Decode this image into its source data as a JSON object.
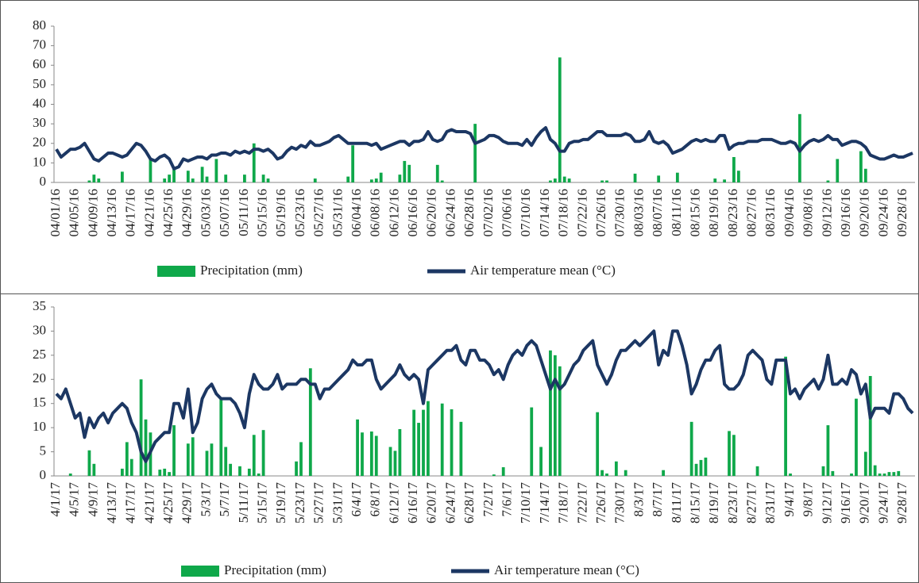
{
  "chart_data": [
    {
      "type": "bar-line",
      "legend": "bottom",
      "ylim": [
        0,
        80
      ],
      "yticks": [
        0,
        10,
        20,
        30,
        40,
        50,
        60,
        70,
        80
      ],
      "categories": [
        "04/01/16",
        null,
        null,
        null,
        "04/05/16",
        null,
        null,
        null,
        "04/09/16",
        null,
        null,
        null,
        "04/13/16",
        null,
        null,
        null,
        "04/17/16",
        null,
        null,
        null,
        "04/21/16",
        null,
        null,
        null,
        "04/25/16",
        null,
        null,
        null,
        "04/29/16",
        null,
        null,
        null,
        "05/03/16",
        null,
        null,
        null,
        "05/07/16",
        null,
        null,
        null,
        "05/11/16",
        null,
        null,
        null,
        "05/15/16",
        null,
        null,
        null,
        "05/19/16",
        null,
        null,
        null,
        "05/23/16",
        null,
        null,
        null,
        "05/27/16",
        null,
        null,
        null,
        "05/31/16",
        null,
        null,
        null,
        "06/04/16",
        null,
        null,
        null,
        "06/08/16",
        null,
        null,
        null,
        "06/12/16",
        null,
        null,
        null,
        "06/16/16",
        null,
        null,
        null,
        "06/20/16",
        null,
        null,
        null,
        "06/24/16",
        null,
        null,
        null,
        "06/28/16",
        null,
        null,
        null,
        "07/02/16",
        null,
        null,
        null,
        "07/06/16",
        null,
        null,
        null,
        "07/10/16",
        null,
        null,
        null,
        "07/14/16",
        null,
        null,
        null,
        "07/18/16",
        null,
        null,
        null,
        "07/22/16",
        null,
        null,
        null,
        "07/26/16",
        null,
        null,
        null,
        "07/30/16",
        null,
        null,
        null,
        "08/03/16",
        null,
        null,
        null,
        "08/07/16",
        null,
        null,
        null,
        "08/11/16",
        null,
        null,
        null,
        "08/15/16",
        null,
        null,
        null,
        "08/19/16",
        null,
        null,
        null,
        "08/23/16",
        null,
        null,
        null,
        "08/27/16",
        null,
        null,
        null,
        "08/31/16",
        null,
        null,
        null,
        "09/04/16",
        null,
        null,
        null,
        "09/08/16",
        null,
        null,
        null,
        "09/12/16",
        null,
        null,
        null,
        "09/16/16",
        null,
        null,
        null,
        "09/20/16",
        null,
        null,
        null,
        "09/24/16",
        null,
        null,
        null,
        "09/28/16",
        null,
        null
      ],
      "series": [
        {
          "name": "Precipitation (mm)",
          "type": "bar",
          "color": "#0fa84a",
          "values": [
            0,
            0,
            0,
            0,
            0,
            0,
            0,
            1,
            4,
            2,
            0,
            0,
            0,
            0,
            5.5,
            0,
            0,
            0,
            0,
            0,
            12,
            0,
            0,
            2,
            4,
            7,
            0,
            0,
            6,
            2,
            0,
            8,
            3,
            0,
            12,
            0,
            4,
            0,
            0,
            0,
            4,
            0,
            20,
            0,
            4,
            2,
            0,
            0,
            0,
            0,
            0,
            0,
            0,
            0,
            0,
            2,
            0,
            0,
            0,
            0,
            0,
            0,
            3,
            19,
            0,
            0,
            0,
            1.5,
            2,
            5,
            0,
            0,
            0,
            4,
            11,
            9,
            0,
            0,
            0,
            0,
            0,
            9,
            1,
            0,
            0,
            0,
            0,
            0,
            0,
            30,
            0,
            0,
            0,
            0,
            0,
            0,
            0,
            0,
            0,
            0,
            0,
            0,
            0,
            0,
            0,
            1,
            2,
            64,
            3,
            2,
            0,
            0,
            0,
            0,
            0,
            0,
            1,
            1,
            0,
            0,
            0,
            0,
            0,
            4.5,
            0,
            0,
            0,
            0,
            3.5,
            0,
            0,
            0,
            5,
            0,
            0,
            0,
            0,
            0,
            0,
            0,
            2,
            0,
            1.5,
            0,
            13,
            6,
            0,
            0,
            0,
            0,
            0,
            0,
            0,
            0,
            0,
            0,
            0,
            0,
            35,
            0,
            0,
            0,
            0,
            0,
            1,
            0,
            12,
            0,
            0,
            0,
            0,
            16,
            7,
            0,
            0,
            0,
            0,
            0,
            0,
            0,
            0,
            0,
            0
          ]
        },
        {
          "name": "Air temperature mean (°C)",
          "type": "line",
          "color": "#1c3763",
          "values": [
            17,
            13,
            15,
            17,
            17,
            18,
            20,
            16,
            12,
            11,
            13,
            15,
            15,
            14,
            13,
            14,
            17,
            20,
            19,
            16,
            12,
            11,
            13,
            14,
            12,
            7,
            8,
            12,
            11,
            12,
            13,
            13,
            12,
            14,
            14,
            15,
            15,
            14,
            16,
            15,
            16,
            15,
            17,
            17,
            16,
            17,
            15,
            12,
            13,
            16,
            18,
            17,
            19,
            18,
            21,
            19,
            19,
            20,
            21,
            23,
            24,
            22,
            20,
            20,
            20,
            20,
            20,
            19,
            20,
            17,
            18,
            19,
            20,
            21,
            21,
            19,
            21,
            21,
            22,
            26,
            22,
            21,
            22,
            26,
            27,
            26,
            26,
            26,
            25,
            20,
            21,
            22,
            24,
            24,
            23,
            21,
            20,
            20,
            20,
            19,
            22,
            19,
            23,
            26,
            28,
            22,
            20,
            16,
            16,
            20,
            21,
            21,
            22,
            22,
            24,
            26,
            26,
            24,
            24,
            24,
            24,
            25,
            24,
            21,
            21,
            22,
            26,
            21,
            20,
            21,
            19,
            15,
            16,
            17,
            19,
            21,
            22,
            21,
            22,
            21,
            21,
            24,
            24,
            17,
            19,
            20,
            20,
            21,
            21,
            21,
            22,
            22,
            22,
            21,
            20,
            20,
            21,
            20,
            16,
            19,
            21,
            22,
            21,
            22,
            24,
            22,
            22,
            19,
            20,
            21,
            21,
            20,
            18,
            14,
            13,
            12,
            12,
            13,
            14,
            13,
            13,
            14,
            15
          ]
        }
      ]
    },
    {
      "type": "bar-line",
      "legend": "bottom",
      "ylim": [
        0,
        35
      ],
      "yticks": [
        0,
        5,
        10,
        15,
        20,
        25,
        30,
        35
      ],
      "categories": [
        "4/1/17",
        null,
        null,
        null,
        "4/5/17",
        null,
        null,
        null,
        "4/9/17",
        null,
        null,
        null,
        "4/13/17",
        null,
        null,
        null,
        "4/17/17",
        null,
        null,
        null,
        "4/21/17",
        null,
        null,
        null,
        "4/25/17",
        null,
        null,
        null,
        "4/29/17",
        null,
        null,
        null,
        "5/3/17",
        null,
        null,
        null,
        "5/7/17",
        null,
        null,
        null,
        "5/11/17",
        null,
        null,
        null,
        "5/15/17",
        null,
        null,
        null,
        "5/19/17",
        null,
        null,
        null,
        "5/23/17",
        null,
        null,
        null,
        "5/27/17",
        null,
        null,
        null,
        "5/31/17",
        null,
        null,
        null,
        "6/4/17",
        null,
        null,
        null,
        "6/8/17",
        null,
        null,
        null,
        "6/12/17",
        null,
        null,
        null,
        "6/16/17",
        null,
        null,
        null,
        "6/20/17",
        null,
        null,
        null,
        "6/24/17",
        null,
        null,
        null,
        "6/28/17",
        null,
        null,
        null,
        "7/2/17",
        null,
        null,
        null,
        "7/6/17",
        null,
        null,
        null,
        "7/10/17",
        null,
        null,
        null,
        "7/14/17",
        null,
        null,
        null,
        "7/18/17",
        null,
        null,
        null,
        "7/22/17",
        null,
        null,
        null,
        "7/26/17",
        null,
        null,
        null,
        "7/30/17",
        null,
        null,
        null,
        "8/3/17",
        null,
        null,
        null,
        "8/7/17",
        null,
        null,
        null,
        "8/11/17",
        null,
        null,
        null,
        "8/15/17",
        null,
        null,
        null,
        "8/19/17",
        null,
        null,
        null,
        "8/23/17",
        null,
        null,
        null,
        "8/27/17",
        null,
        null,
        null,
        "8/31/17",
        null,
        null,
        null,
        "9/4/17",
        null,
        null,
        null,
        "9/8/17",
        null,
        null,
        null,
        "9/12/17",
        null,
        null,
        null,
        "9/16/17",
        null,
        null,
        null,
        "9/20/17",
        null,
        null,
        null,
        "9/24/17",
        null,
        null,
        null,
        "9/28/17",
        null,
        null
      ],
      "series": [
        {
          "name": "Precipitation (mm)",
          "type": "bar",
          "color": "#0fa84a",
          "values": [
            0,
            0,
            0,
            0.5,
            0,
            0,
            0,
            5.3,
            2.5,
            0,
            0,
            0,
            0,
            0,
            1.5,
            7,
            3.5,
            0,
            20,
            11.7,
            9,
            0,
            1.3,
            1.5,
            0.8,
            10.5,
            0,
            0,
            6.7,
            8,
            0,
            0,
            5.2,
            6.7,
            0,
            16,
            6,
            2.5,
            0,
            2,
            0,
            1.5,
            8.5,
            0.5,
            9.5,
            0,
            0,
            0,
            0,
            0,
            0,
            3,
            7,
            0,
            22.3,
            0,
            0,
            0,
            0,
            0,
            0,
            0,
            0,
            0,
            11.7,
            9,
            0,
            9.2,
            8.3,
            0,
            0,
            6,
            5.2,
            9.7,
            0,
            0,
            13.7,
            11,
            13.7,
            15.5,
            0,
            0,
            15,
            0,
            13.8,
            0,
            11.2,
            0,
            0,
            0,
            0,
            0,
            0,
            0.3,
            0,
            1.8,
            0,
            0,
            0,
            0,
            0,
            14.2,
            0,
            6,
            0,
            26,
            25,
            22.7,
            0,
            0,
            0,
            0,
            0,
            0,
            0,
            13.2,
            1.2,
            0.5,
            0,
            3,
            0,
            1.2,
            0,
            0,
            0,
            0,
            0,
            0,
            0,
            1.2,
            0,
            0,
            0,
            0,
            0,
            11.2,
            2.5,
            3.3,
            3.8,
            0,
            0,
            0,
            0,
            9.3,
            8.5,
            0,
            0,
            0,
            0,
            2,
            0,
            0,
            0,
            0,
            0,
            24.7,
            0.5,
            0,
            0,
            0,
            0,
            0,
            0,
            2,
            10.5,
            1,
            0,
            0,
            0,
            0.5,
            16,
            0,
            5,
            20.7,
            2.2,
            0.5,
            0.5,
            0.8,
            0.8,
            1,
            0,
            0,
            0
          ]
        },
        {
          "name": "Air temperature mean (°C)",
          "type": "line",
          "color": "#1c3763",
          "values": [
            17,
            16,
            18,
            15,
            12,
            13,
            8,
            12,
            10,
            12,
            13,
            11,
            13,
            14,
            15,
            14,
            11,
            9,
            5,
            3,
            5,
            7,
            8,
            9,
            9,
            15,
            15,
            12,
            18,
            9,
            11,
            16,
            18,
            19,
            17,
            16,
            16,
            16,
            15,
            13,
            10,
            17,
            21,
            19,
            18,
            18,
            19,
            21,
            18,
            19,
            19,
            19,
            20,
            20,
            19,
            19,
            16,
            18,
            18,
            19,
            20,
            21,
            22,
            24,
            23,
            23,
            24,
            24,
            20,
            18,
            19,
            20,
            21,
            23,
            21,
            20,
            21,
            20,
            15,
            22,
            23,
            24,
            25,
            26,
            26,
            27,
            24,
            23,
            26,
            26,
            24,
            24,
            23,
            21,
            22,
            20,
            23,
            25,
            26,
            25,
            27,
            28,
            27,
            24,
            21,
            18,
            20,
            18,
            19,
            21,
            23,
            24,
            26,
            27,
            28,
            23,
            21,
            19,
            21,
            24,
            26,
            26,
            27,
            28,
            27,
            28,
            29,
            30,
            23,
            26,
            25,
            30,
            30,
            27,
            23,
            17,
            19,
            22,
            24,
            24,
            26,
            27,
            19,
            18,
            18,
            19,
            21,
            25,
            26,
            25,
            24,
            20,
            19,
            24,
            24,
            24,
            17,
            18,
            16,
            18,
            19,
            20,
            18,
            20,
            25,
            19,
            19,
            20,
            19,
            22,
            21,
            17,
            19,
            12,
            14,
            14,
            14,
            13,
            17,
            17,
            16,
            14,
            13
          ]
        }
      ]
    }
  ]
}
